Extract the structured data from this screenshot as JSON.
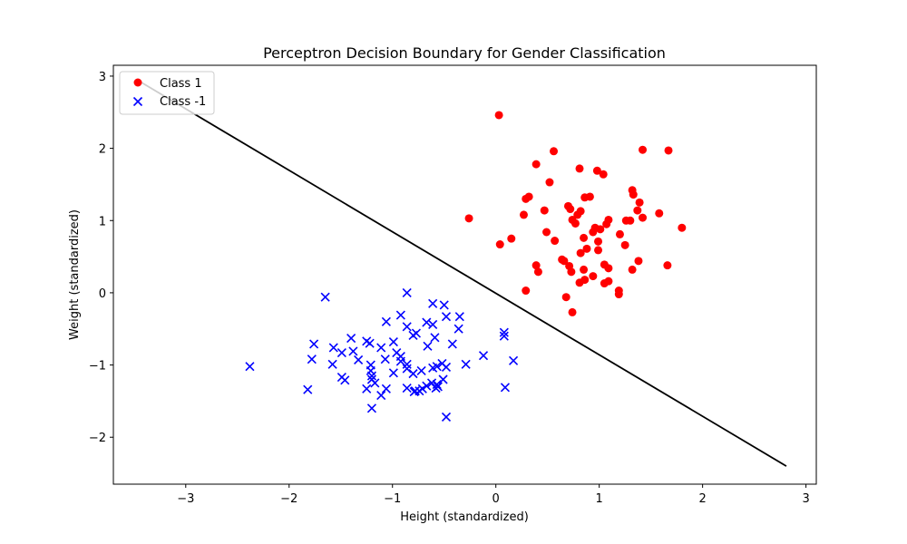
{
  "chart_data": {
    "type": "scatter",
    "title": "Perceptron Decision Boundary for Gender Classification",
    "xlabel": "Height (standardized)",
    "ylabel": "Weight (standardized)",
    "xlim": [
      -3.7,
      3.1
    ],
    "ylim": [
      -2.65,
      3.15
    ],
    "xticks": [
      -3,
      -2,
      -1,
      0,
      1,
      2,
      3
    ],
    "yticks": [
      -2,
      -1,
      0,
      1,
      2,
      3
    ],
    "legend_position": "top-left",
    "grid": false,
    "series": [
      {
        "name": "Class 1",
        "marker": "circle",
        "color": "#ff0000",
        "points": [
          [
            0.03,
            2.46
          ],
          [
            0.56,
            1.96
          ],
          [
            1.42,
            1.98
          ],
          [
            1.67,
            1.97
          ],
          [
            0.39,
            1.78
          ],
          [
            0.81,
            1.72
          ],
          [
            0.98,
            1.69
          ],
          [
            1.04,
            1.64
          ],
          [
            0.52,
            1.53
          ],
          [
            1.32,
            1.42
          ],
          [
            1.33,
            1.36
          ],
          [
            0.29,
            1.3
          ],
          [
            0.32,
            1.33
          ],
          [
            0.86,
            1.32
          ],
          [
            0.91,
            1.33
          ],
          [
            1.39,
            1.25
          ],
          [
            0.7,
            1.2
          ],
          [
            0.72,
            1.16
          ],
          [
            0.47,
            1.14
          ],
          [
            0.82,
            1.13
          ],
          [
            0.79,
            1.08
          ],
          [
            1.37,
            1.14
          ],
          [
            1.58,
            1.1
          ],
          [
            0.27,
            1.08
          ],
          [
            1.42,
            1.04
          ],
          [
            0.74,
            1.01
          ],
          [
            0.77,
            0.96
          ],
          [
            1.09,
            1.01
          ],
          [
            1.26,
            1.0
          ],
          [
            1.3,
            1.0
          ],
          [
            1.07,
            0.95
          ],
          [
            0.96,
            0.9
          ],
          [
            1.01,
            0.88
          ],
          [
            1.8,
            0.9
          ],
          [
            0.49,
            0.84
          ],
          [
            0.94,
            0.84
          ],
          [
            1.2,
            0.81
          ],
          [
            -0.26,
            1.03
          ],
          [
            0.85,
            0.76
          ],
          [
            0.15,
            0.75
          ],
          [
            0.57,
            0.72
          ],
          [
            0.99,
            0.71
          ],
          [
            0.04,
            0.67
          ],
          [
            1.25,
            0.66
          ],
          [
            0.88,
            0.61
          ],
          [
            0.99,
            0.59
          ],
          [
            0.82,
            0.55
          ],
          [
            0.64,
            0.46
          ],
          [
            0.66,
            0.44
          ],
          [
            1.38,
            0.44
          ],
          [
            0.39,
            0.38
          ],
          [
            1.05,
            0.39
          ],
          [
            0.71,
            0.37
          ],
          [
            1.09,
            0.34
          ],
          [
            1.66,
            0.38
          ],
          [
            0.41,
            0.29
          ],
          [
            0.73,
            0.29
          ],
          [
            0.85,
            0.32
          ],
          [
            1.32,
            0.32
          ],
          [
            0.94,
            0.23
          ],
          [
            0.86,
            0.18
          ],
          [
            0.81,
            0.14
          ],
          [
            1.05,
            0.13
          ],
          [
            1.09,
            0.16
          ],
          [
            0.29,
            0.03
          ],
          [
            1.19,
            0.03
          ],
          [
            1.19,
            -0.02
          ],
          [
            0.68,
            -0.06
          ],
          [
            0.74,
            -0.27
          ]
        ]
      },
      {
        "name": "Class -1",
        "marker": "x",
        "color": "#0000ff",
        "points": [
          [
            -2.38,
            -1.02
          ],
          [
            -1.65,
            -0.06
          ],
          [
            -0.86,
            0.0
          ],
          [
            -0.61,
            -0.15
          ],
          [
            -0.5,
            -0.17
          ],
          [
            -0.92,
            -0.31
          ],
          [
            -0.48,
            -0.33
          ],
          [
            -0.35,
            -0.33
          ],
          [
            -1.06,
            -0.4
          ],
          [
            -0.67,
            -0.41
          ],
          [
            -0.61,
            -0.44
          ],
          [
            -0.86,
            -0.47
          ],
          [
            -0.36,
            -0.5
          ],
          [
            0.08,
            -0.55
          ],
          [
            -0.77,
            -0.56
          ],
          [
            -0.8,
            -0.59
          ],
          [
            0.08,
            -0.6
          ],
          [
            -0.59,
            -0.62
          ],
          [
            -1.4,
            -0.63
          ],
          [
            -1.25,
            -0.67
          ],
          [
            -1.22,
            -0.7
          ],
          [
            -0.99,
            -0.68
          ],
          [
            -1.76,
            -0.71
          ],
          [
            -0.42,
            -0.71
          ],
          [
            -0.66,
            -0.74
          ],
          [
            -1.57,
            -0.76
          ],
          [
            -1.11,
            -0.76
          ],
          [
            -1.49,
            -0.83
          ],
          [
            -1.38,
            -0.81
          ],
          [
            -0.96,
            -0.83
          ],
          [
            -0.92,
            -0.88
          ],
          [
            -0.12,
            -0.87
          ],
          [
            -1.78,
            -0.92
          ],
          [
            -1.33,
            -0.93
          ],
          [
            -1.07,
            -0.92
          ],
          [
            0.17,
            -0.94
          ],
          [
            -0.92,
            -0.95
          ],
          [
            -0.86,
            -0.99
          ],
          [
            -1.58,
            -0.99
          ],
          [
            -0.52,
            -0.98
          ],
          [
            -0.29,
            -0.99
          ],
          [
            -1.21,
            -1.0
          ],
          [
            -0.57,
            -1.02
          ],
          [
            -0.61,
            -1.04
          ],
          [
            -0.48,
            -1.03
          ],
          [
            -0.86,
            -1.05
          ],
          [
            -0.72,
            -1.08
          ],
          [
            -1.21,
            -1.08
          ],
          [
            -0.99,
            -1.11
          ],
          [
            -0.8,
            -1.12
          ],
          [
            -1.2,
            -1.15
          ],
          [
            -1.49,
            -1.17
          ],
          [
            -1.46,
            -1.21
          ],
          [
            -0.51,
            -1.2
          ],
          [
            -1.2,
            -1.2
          ],
          [
            -1.17,
            -1.25
          ],
          [
            -0.62,
            -1.25
          ],
          [
            -0.67,
            -1.29
          ],
          [
            -0.57,
            -1.27
          ],
          [
            -0.86,
            -1.32
          ],
          [
            -1.06,
            -1.33
          ],
          [
            -1.25,
            -1.33
          ],
          [
            -0.71,
            -1.33
          ],
          [
            -0.58,
            -1.32
          ],
          [
            -1.82,
            -1.34
          ],
          [
            -0.78,
            -1.36
          ],
          [
            -0.79,
            -1.37
          ],
          [
            -1.11,
            -1.42
          ],
          [
            0.09,
            -1.31
          ],
          [
            -1.2,
            -1.6
          ],
          [
            -0.48,
            -1.72
          ],
          [
            -0.74,
            -1.36
          ],
          [
            -0.56,
            -1.3
          ]
        ]
      }
    ],
    "decision_boundary": {
      "name": "",
      "color": "#000000",
      "points": [
        [
          -3.45,
          2.93
        ],
        [
          2.81,
          -2.4
        ]
      ]
    }
  }
}
